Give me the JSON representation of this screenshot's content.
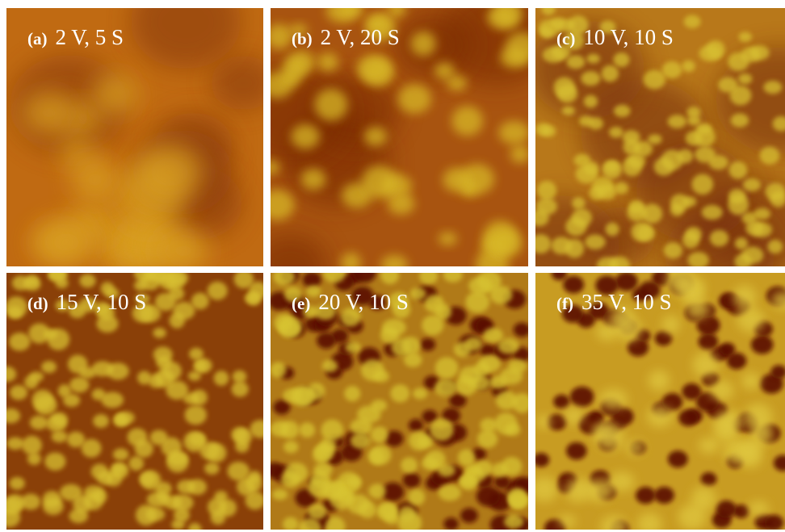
{
  "panels": [
    {
      "label": "(a)",
      "caption": "2 V, 5 S"
    },
    {
      "label": "(b)",
      "caption": "2 V, 20 S"
    },
    {
      "label": "(c)",
      "caption": "10 V, 10 S"
    },
    {
      "label": "(d)",
      "caption": "15 V, 10 S"
    },
    {
      "label": "(e)",
      "caption": "20 V, 10 S"
    },
    {
      "label": "(f)",
      "caption": "35 V, 10 S"
    }
  ]
}
